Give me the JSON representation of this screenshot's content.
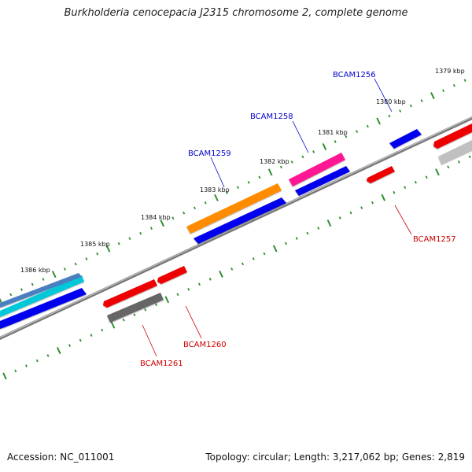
{
  "title": "Burkholderia cenocepacia J2315 chromosome 2, complete genome",
  "footer": {
    "accession": "Accession: NC_011001",
    "summary": "Topology: circular; Length: 3,217,062 bp; Genes: 2,819"
  },
  "colors": {
    "backbone": "#7a7a7a",
    "ticks": "#2f8f2f",
    "label_forward": "#0000cc",
    "label_reverse": "#cc0000"
  },
  "scale_labels": [
    "1379 kbp",
    "1380 kbp",
    "1381 kbp",
    "1382 kbp",
    "1383 kbp",
    "1384 kbp",
    "1385 kbp",
    "1386 kbp"
  ],
  "gene_labels": [
    {
      "text": "BCAM1256",
      "strand": "forward"
    },
    {
      "text": "BCAM1257",
      "strand": "reverse"
    },
    {
      "text": "BCAM1258",
      "strand": "forward"
    },
    {
      "text": "BCAM1259",
      "strand": "forward"
    },
    {
      "text": "BCAM1260",
      "strand": "reverse"
    },
    {
      "text": "BCAM1261",
      "strand": "reverse"
    }
  ],
  "features": [
    {
      "kind": "cds",
      "color": "#0000ee"
    },
    {
      "kind": "cds",
      "color": "#0000ee"
    },
    {
      "kind": "cds",
      "color": "#0000ee"
    },
    {
      "kind": "cds",
      "color": "#0000ee"
    },
    {
      "kind": "cds",
      "color": "#ee0000"
    },
    {
      "kind": "cds",
      "color": "#ee0000"
    },
    {
      "kind": "cds",
      "color": "#ee0000"
    },
    {
      "kind": "cds",
      "color": "#ee0000"
    },
    {
      "kind": "cog",
      "color": "#ff8c00"
    },
    {
      "kind": "cog",
      "color": "#ff1493"
    },
    {
      "kind": "cog",
      "color": "#00c8d8"
    },
    {
      "kind": "cog",
      "color": "#4a7fc0"
    },
    {
      "kind": "cog",
      "color": "#666666"
    },
    {
      "kind": "cog",
      "color": "#c0c0c0"
    }
  ]
}
